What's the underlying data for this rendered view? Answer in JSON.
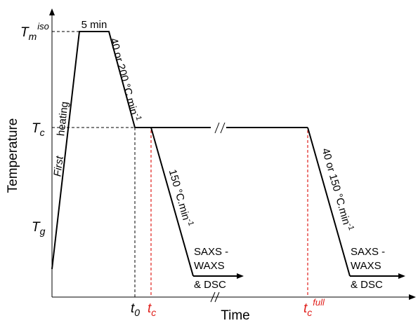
{
  "axes": {
    "y_title": "Temperature",
    "x_title": "Time"
  },
  "y_ticks": {
    "tm_main": "T",
    "tm_sub": "m",
    "tm_sup": "iso",
    "tc_main": "T",
    "tc_sub": "c",
    "tg_main": "T",
    "tg_sub": "g"
  },
  "x_ticks": {
    "t0_main": "t",
    "t0_sub": "0",
    "tc_main": "t",
    "tc_sub": "c",
    "tcfull_main": "t",
    "tcfull_sub": "c",
    "tcfull_sup": "full"
  },
  "annotations": {
    "hold": "5 min",
    "first": "First",
    "heating": "heating",
    "cool1_a": "40 or 200 °C.min",
    "cool1_sup": "-1",
    "cool2_a": "150 °C.min",
    "cool2_sup": "-1",
    "cool3_a": "40 or 150 °C.min",
    "cool3_sup": "-1",
    "meas1_l1": "SAXS -",
    "meas1_l2": "WAXS",
    "meas1_l3": "& DSC",
    "meas2_l1": "SAXS -",
    "meas2_l2": "WAXS",
    "meas2_l3": "& DSC"
  },
  "colors": {
    "line": "#000000",
    "highlight": "#e0201c"
  }
}
